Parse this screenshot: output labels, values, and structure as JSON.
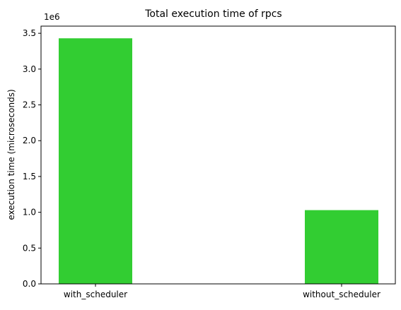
{
  "chart_data": {
    "type": "bar",
    "title": "Total execution time of rpcs",
    "xlabel": "",
    "ylabel": "execution time (microseconds)",
    "categories": [
      "with_scheduler",
      "without_scheduler"
    ],
    "values": [
      3430000,
      1030000
    ],
    "ylim": [
      0,
      3600000
    ],
    "yticks": [
      0,
      0.5,
      1.0,
      1.5,
      2.0,
      2.5,
      3.0,
      3.5
    ],
    "ytick_labels": [
      "0.0",
      "0.5",
      "1.0",
      "1.5",
      "2.0",
      "2.5",
      "3.0",
      "3.5"
    ],
    "y_multiplier": 1000000,
    "offset_label": "1e6",
    "bar_color": "#32cd32",
    "grid": false,
    "legend": "none"
  }
}
